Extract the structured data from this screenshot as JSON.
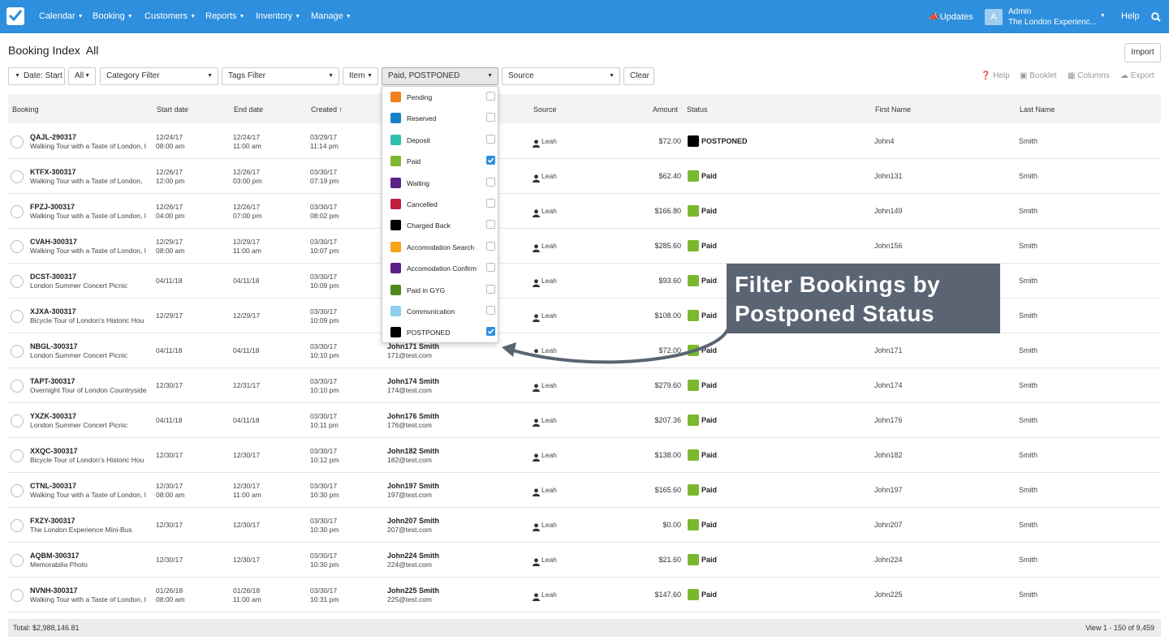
{
  "nav": {
    "items": [
      "Calendar",
      "Booking",
      "Customers",
      "Reports",
      "Inventory",
      "Manage"
    ],
    "updates": "Updates",
    "avatar_letter": "A",
    "admin_name": "Admin",
    "admin_org": "The London Experienc...",
    "help": "Help"
  },
  "page": {
    "title": "Booking Index",
    "subtitle": "All",
    "import": "Import"
  },
  "filters": {
    "date": "Date: Start",
    "all": "All",
    "category": "Category Filter",
    "tags": "Tags Filter",
    "item": "Item",
    "status": "Paid, POSTPONED",
    "source": "Source",
    "clear": "Clear"
  },
  "tools": {
    "help": "Help",
    "booklet": "Booklet",
    "columns": "Columns",
    "export": "Export"
  },
  "columns": {
    "booking": "Booking",
    "start": "Start date",
    "end": "End date",
    "created": "Created",
    "source": "Source",
    "amount": "Amount",
    "status": "Status",
    "first": "First Name",
    "last": "Last Name"
  },
  "rows": [
    {
      "id": "QAJL-290317",
      "desc": "Walking Tour with a Taste of London, I",
      "start_d": "12/24/17",
      "start_t": "08:00 am",
      "end_d": "12/24/17",
      "end_t": "11:00 am",
      "cr_d": "03/29/17",
      "cr_t": "11:14 pm",
      "cust": "",
      "email": "",
      "source": "Leah",
      "amount": "$72.00",
      "status": "POSTPONED",
      "color": "#000000",
      "first": "John4",
      "last": "Smith"
    },
    {
      "id": "KTFX-300317",
      "desc": "Walking Tour with a Taste of London, ",
      "start_d": "12/26/17",
      "start_t": "12:00 pm",
      "end_d": "12/26/17",
      "end_t": "03:00 pm",
      "cr_d": "03/30/17",
      "cr_t": "07:19 pm",
      "cust": "",
      "email": "",
      "source": "Leah",
      "amount": "$62.40",
      "status": "Paid",
      "color": "#7cb82f",
      "first": "John131",
      "last": "Smith"
    },
    {
      "id": "FPZJ-300317",
      "desc": "Walking Tour with a Taste of London, I",
      "start_d": "12/26/17",
      "start_t": "04:00 pm",
      "end_d": "12/26/17",
      "end_t": "07:00 pm",
      "cr_d": "03/30/17",
      "cr_t": "08:02 pm",
      "cust": "",
      "email": "",
      "source": "Leah",
      "amount": "$166.80",
      "status": "Paid",
      "color": "#7cb82f",
      "first": "John149",
      "last": "Smith"
    },
    {
      "id": "CVAH-300317",
      "desc": "Walking Tour with a Taste of London, I",
      "start_d": "12/29/17",
      "start_t": "08:00 am",
      "end_d": "12/29/17",
      "end_t": "11:00 am",
      "cr_d": "03/30/17",
      "cr_t": "10:07 pm",
      "cust": "",
      "email": "",
      "source": "Leah",
      "amount": "$285.60",
      "status": "Paid",
      "color": "#7cb82f",
      "first": "John156",
      "last": "Smith"
    },
    {
      "id": "DCST-300317",
      "desc": "London Summer Concert Picnic",
      "start_d": "04/11/18",
      "start_t": "",
      "end_d": "04/11/18",
      "end_t": "",
      "cr_d": "03/30/17",
      "cr_t": "10:09 pm",
      "cust": "",
      "email": "",
      "source": "Leah",
      "amount": "$93.60",
      "status": "Paid",
      "color": "#7cb82f",
      "first": "",
      "last": "Smith"
    },
    {
      "id": "XJXA-300317",
      "desc": "Bicycle Tour of London's Historic Hou",
      "start_d": "12/29/17",
      "start_t": "",
      "end_d": "12/29/17",
      "end_t": "",
      "cr_d": "03/30/17",
      "cr_t": "10:09 pm",
      "cust": "",
      "email": "",
      "source": "Leah",
      "amount": "$108.00",
      "status": "Paid",
      "color": "#7cb82f",
      "first": "",
      "last": "Smith"
    },
    {
      "id": "NBGL-300317",
      "desc": "London Summer Concert Picnic",
      "start_d": "04/11/18",
      "start_t": "",
      "end_d": "04/11/18",
      "end_t": "",
      "cr_d": "03/30/17",
      "cr_t": "10:10 pm",
      "cust": "John171 Smith",
      "email": "171@test.com",
      "source": "Leah",
      "amount": "$72.00",
      "status": "Paid",
      "color": "#7cb82f",
      "first": "John171",
      "last": "Smith"
    },
    {
      "id": "TAPT-300317",
      "desc": "Overnight Tour of London Countryside",
      "start_d": "12/30/17",
      "start_t": "",
      "end_d": "12/31/17",
      "end_t": "",
      "cr_d": "03/30/17",
      "cr_t": "10:10 pm",
      "cust": "John174 Smith",
      "email": "174@test.com",
      "source": "Leah",
      "amount": "$279.60",
      "status": "Paid",
      "color": "#7cb82f",
      "first": "John174",
      "last": "Smith"
    },
    {
      "id": "YXZK-300317",
      "desc": "London Summer Concert Picnic",
      "start_d": "04/11/18",
      "start_t": "",
      "end_d": "04/11/18",
      "end_t": "",
      "cr_d": "03/30/17",
      "cr_t": "10:11 pm",
      "cust": "John176 Smith",
      "email": "176@test.com",
      "source": "Leah",
      "amount": "$207.36",
      "status": "Paid",
      "color": "#7cb82f",
      "first": "John176",
      "last": "Smith"
    },
    {
      "id": "XXQC-300317",
      "desc": "Bicycle Tour of London's Historic Hou",
      "start_d": "12/30/17",
      "start_t": "",
      "end_d": "12/30/17",
      "end_t": "",
      "cr_d": "03/30/17",
      "cr_t": "10:12 pm",
      "cust": "John182 Smith",
      "email": "182@test.com",
      "source": "Leah",
      "amount": "$138.00",
      "status": "Paid",
      "color": "#7cb82f",
      "first": "John182",
      "last": "Smith"
    },
    {
      "id": "CTNL-300317",
      "desc": "Walking Tour with a Taste of London, I",
      "start_d": "12/30/17",
      "start_t": "08:00 am",
      "end_d": "12/30/17",
      "end_t": "11:00 am",
      "cr_d": "03/30/17",
      "cr_t": "10:30 pm",
      "cust": "John197 Smith",
      "email": "197@test.com",
      "source": "Leah",
      "amount": "$165.60",
      "status": "Paid",
      "color": "#7cb82f",
      "first": "John197",
      "last": "Smith"
    },
    {
      "id": "FXZY-300317",
      "desc": "The London Experience Mini-Bus",
      "start_d": "12/30/17",
      "start_t": "",
      "end_d": "12/30/17",
      "end_t": "",
      "cr_d": "03/30/17",
      "cr_t": "10:30 pm",
      "cust": "John207 Smith",
      "email": "207@test.com",
      "source": "Leah",
      "amount": "$0.00",
      "status": "Paid",
      "color": "#7cb82f",
      "first": "John207",
      "last": "Smith"
    },
    {
      "id": "AQBM-300317",
      "desc": "Memorabilia Photo",
      "start_d": "12/30/17",
      "start_t": "",
      "end_d": "12/30/17",
      "end_t": "",
      "cr_d": "03/30/17",
      "cr_t": "10:30 pm",
      "cust": "John224 Smith",
      "email": "224@test.com",
      "source": "Leah",
      "amount": "$21.60",
      "status": "Paid",
      "color": "#7cb82f",
      "first": "John224",
      "last": "Smith"
    },
    {
      "id": "NVNH-300317",
      "desc": "Walking Tour with a Taste of London, I",
      "start_d": "01/26/18",
      "start_t": "08:00 am",
      "end_d": "01/26/18",
      "end_t": "11:00 am",
      "cr_d": "03/30/17",
      "cr_t": "10:31 pm",
      "cust": "John225 Smith",
      "email": "225@test.com",
      "source": "Leah",
      "amount": "$147.60",
      "status": "Paid",
      "color": "#7cb82f",
      "first": "John225",
      "last": "Smith"
    }
  ],
  "footer": {
    "total": "Total: $2,988,146.81",
    "view": "View 1 - 150 of 9,459"
  },
  "status_dropdown": [
    {
      "label": "Pending",
      "color": "#f07f1b",
      "checked": false
    },
    {
      "label": "Reserved",
      "color": "#1a7fc9",
      "checked": false
    },
    {
      "label": "Deposit",
      "color": "#2fbfae",
      "checked": false
    },
    {
      "label": "Paid",
      "color": "#7cb82f",
      "checked": true
    },
    {
      "label": "Waiting",
      "color": "#5a2088",
      "checked": false
    },
    {
      "label": "Cancelled",
      "color": "#c01e3e",
      "checked": false
    },
    {
      "label": "Charged Back",
      "color": "#000000",
      "checked": false
    },
    {
      "label": "Accomodation Search",
      "color": "#f7a21b",
      "checked": false
    },
    {
      "label": "Accomodation Confirm",
      "color": "#5a2088",
      "checked": false
    },
    {
      "label": "Paid in GYG",
      "color": "#4f8a1b",
      "checked": false
    },
    {
      "label": "Communication",
      "color": "#8ad0ec",
      "checked": false
    },
    {
      "label": "POSTPONED",
      "color": "#000000",
      "checked": true
    }
  ],
  "callout": {
    "line1": "Filter Bookings by",
    "line2": "Postponed Status"
  }
}
